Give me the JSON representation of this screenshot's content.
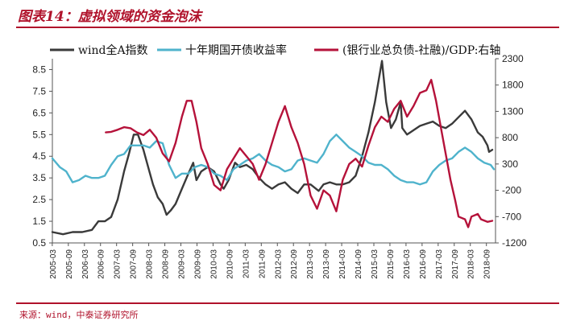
{
  "title": "图表14：虚拟领域的资金泡沫",
  "source": "来源：wind，中泰证券研究所",
  "chart_data": {
    "type": "line",
    "title": "",
    "xlabel": "",
    "ylabel": "",
    "ylim": [
      0.5,
      9.0
    ],
    "y2lim": [
      -1200,
      2300
    ],
    "yticks": [
      "8.5",
      "7.5",
      "6.5",
      "5.5",
      "4.5",
      "3.5",
      "2.5",
      "1.5",
      "0.5"
    ],
    "y2ticks": [
      "2300",
      "1800",
      "1300",
      "800",
      "300",
      "-200",
      "-700",
      "-1200"
    ],
    "xticks": [
      "2005-03",
      "2005-09",
      "2006-03",
      "2006-09",
      "2007-03",
      "2007-09",
      "2008-03",
      "2008-09",
      "2009-03",
      "2009-09",
      "2010-03",
      "2010-09",
      "2011-03",
      "2011-09",
      "2012-03",
      "2012-09",
      "2013-03",
      "2013-09",
      "2014-03",
      "2014-09",
      "2015-03",
      "2015-09",
      "2016-03",
      "2016-09",
      "2017-03",
      "2017-09",
      "2018-03",
      "2018-09"
    ],
    "legend_placement": "top",
    "series": [
      {
        "name": "wind全A指数",
        "color": "#3a3a3a",
        "axis": "left",
        "points": [
          [
            2005.17,
            1.0
          ],
          [
            2005.5,
            0.9
          ],
          [
            2005.8,
            1.0
          ],
          [
            2006.1,
            1.0
          ],
          [
            2006.4,
            1.1
          ],
          [
            2006.6,
            1.5
          ],
          [
            2006.8,
            1.5
          ],
          [
            2007.0,
            1.7
          ],
          [
            2007.2,
            2.5
          ],
          [
            2007.4,
            3.8
          ],
          [
            2007.55,
            4.6
          ],
          [
            2007.7,
            5.5
          ],
          [
            2007.83,
            5.5
          ],
          [
            2008.0,
            4.8
          ],
          [
            2008.15,
            4.0
          ],
          [
            2008.3,
            3.2
          ],
          [
            2008.45,
            2.6
          ],
          [
            2008.6,
            2.3
          ],
          [
            2008.72,
            1.8
          ],
          [
            2008.85,
            2.0
          ],
          [
            2009.0,
            2.3
          ],
          [
            2009.2,
            3.0
          ],
          [
            2009.4,
            3.7
          ],
          [
            2009.55,
            4.2
          ],
          [
            2009.65,
            3.4
          ],
          [
            2009.8,
            3.8
          ],
          [
            2010.0,
            4.0
          ],
          [
            2010.2,
            3.8
          ],
          [
            2010.4,
            3.2
          ],
          [
            2010.5,
            3.0
          ],
          [
            2010.65,
            3.4
          ],
          [
            2010.85,
            4.2
          ],
          [
            2011.0,
            4.0
          ],
          [
            2011.2,
            4.1
          ],
          [
            2011.4,
            3.9
          ],
          [
            2011.6,
            3.5
          ],
          [
            2011.8,
            3.2
          ],
          [
            2012.0,
            3.0
          ],
          [
            2012.2,
            3.2
          ],
          [
            2012.4,
            3.3
          ],
          [
            2012.6,
            3.0
          ],
          [
            2012.8,
            2.8
          ],
          [
            2013.0,
            3.2
          ],
          [
            2013.2,
            3.2
          ],
          [
            2013.45,
            2.9
          ],
          [
            2013.6,
            3.2
          ],
          [
            2013.8,
            3.3
          ],
          [
            2014.0,
            3.2
          ],
          [
            2014.2,
            3.2
          ],
          [
            2014.4,
            3.3
          ],
          [
            2014.6,
            3.6
          ],
          [
            2014.8,
            4.5
          ],
          [
            2015.0,
            5.6
          ],
          [
            2015.2,
            7.0
          ],
          [
            2015.42,
            8.9
          ],
          [
            2015.55,
            7.0
          ],
          [
            2015.7,
            5.8
          ],
          [
            2015.85,
            6.2
          ],
          [
            2016.0,
            7.0
          ],
          [
            2016.05,
            5.8
          ],
          [
            2016.2,
            5.5
          ],
          [
            2016.4,
            5.7
          ],
          [
            2016.6,
            5.9
          ],
          [
            2016.8,
            6.0
          ],
          [
            2017.0,
            6.1
          ],
          [
            2017.2,
            5.9
          ],
          [
            2017.4,
            5.8
          ],
          [
            2017.6,
            6.0
          ],
          [
            2017.8,
            6.3
          ],
          [
            2018.0,
            6.6
          ],
          [
            2018.2,
            6.2
          ],
          [
            2018.4,
            5.6
          ],
          [
            2018.55,
            5.4
          ],
          [
            2018.7,
            5.0
          ],
          [
            2018.75,
            4.7
          ],
          [
            2018.85,
            4.8
          ]
        ]
      },
      {
        "name": "十年期国开债收益率",
        "color": "#4fb3cc",
        "axis": "left",
        "points": [
          [
            2005.17,
            4.4
          ],
          [
            2005.4,
            4.0
          ],
          [
            2005.6,
            3.8
          ],
          [
            2005.8,
            3.3
          ],
          [
            2006.0,
            3.4
          ],
          [
            2006.2,
            3.6
          ],
          [
            2006.4,
            3.5
          ],
          [
            2006.6,
            3.5
          ],
          [
            2006.8,
            3.6
          ],
          [
            2007.0,
            4.1
          ],
          [
            2007.2,
            4.5
          ],
          [
            2007.4,
            4.6
          ],
          [
            2007.6,
            5.0
          ],
          [
            2007.8,
            5.0
          ],
          [
            2008.0,
            5.0
          ],
          [
            2008.2,
            4.9
          ],
          [
            2008.4,
            5.2
          ],
          [
            2008.6,
            5.1
          ],
          [
            2008.8,
            4.1
          ],
          [
            2009.0,
            3.5
          ],
          [
            2009.2,
            3.7
          ],
          [
            2009.4,
            3.7
          ],
          [
            2009.6,
            4.0
          ],
          [
            2009.8,
            4.1
          ],
          [
            2010.0,
            4.0
          ],
          [
            2010.2,
            3.7
          ],
          [
            2010.4,
            3.6
          ],
          [
            2010.6,
            3.4
          ],
          [
            2010.8,
            3.9
          ],
          [
            2011.0,
            4.1
          ],
          [
            2011.2,
            4.3
          ],
          [
            2011.4,
            4.4
          ],
          [
            2011.6,
            4.6
          ],
          [
            2011.8,
            4.3
          ],
          [
            2012.0,
            4.1
          ],
          [
            2012.2,
            4.0
          ],
          [
            2012.4,
            3.8
          ],
          [
            2012.6,
            3.9
          ],
          [
            2012.8,
            4.3
          ],
          [
            2013.0,
            4.4
          ],
          [
            2013.2,
            4.3
          ],
          [
            2013.4,
            4.2
          ],
          [
            2013.6,
            4.6
          ],
          [
            2013.8,
            5.2
          ],
          [
            2014.0,
            5.5
          ],
          [
            2014.2,
            5.2
          ],
          [
            2014.4,
            4.9
          ],
          [
            2014.6,
            4.7
          ],
          [
            2014.8,
            4.5
          ],
          [
            2015.0,
            4.2
          ],
          [
            2015.2,
            4.1
          ],
          [
            2015.4,
            4.1
          ],
          [
            2015.6,
            3.9
          ],
          [
            2015.8,
            3.6
          ],
          [
            2016.0,
            3.4
          ],
          [
            2016.2,
            3.3
          ],
          [
            2016.4,
            3.3
          ],
          [
            2016.6,
            3.2
          ],
          [
            2016.8,
            3.3
          ],
          [
            2017.0,
            3.8
          ],
          [
            2017.2,
            4.1
          ],
          [
            2017.4,
            4.3
          ],
          [
            2017.6,
            4.4
          ],
          [
            2017.8,
            4.7
          ],
          [
            2018.0,
            4.9
          ],
          [
            2018.2,
            4.7
          ],
          [
            2018.4,
            4.4
          ],
          [
            2018.6,
            4.2
          ],
          [
            2018.8,
            4.1
          ],
          [
            2018.9,
            3.9
          ]
        ]
      },
      {
        "name": "(银行业总负债-社融)/GDP:右轴",
        "color": "#b5123a",
        "axis": "right",
        "points": [
          [
            2006.83,
            900
          ],
          [
            2007.0,
            910
          ],
          [
            2007.2,
            950
          ],
          [
            2007.4,
            1000
          ],
          [
            2007.6,
            980
          ],
          [
            2007.8,
            900
          ],
          [
            2008.0,
            850
          ],
          [
            2008.2,
            950
          ],
          [
            2008.4,
            800
          ],
          [
            2008.6,
            500
          ],
          [
            2008.8,
            350
          ],
          [
            2009.0,
            700
          ],
          [
            2009.2,
            1200
          ],
          [
            2009.35,
            1500
          ],
          [
            2009.5,
            1500
          ],
          [
            2009.65,
            1100
          ],
          [
            2009.8,
            600
          ],
          [
            2010.0,
            300
          ],
          [
            2010.2,
            -100
          ],
          [
            2010.4,
            -200
          ],
          [
            2010.6,
            200
          ],
          [
            2010.8,
            400
          ],
          [
            2011.0,
            600
          ],
          [
            2011.2,
            450
          ],
          [
            2011.4,
            300
          ],
          [
            2011.6,
            0
          ],
          [
            2011.8,
            300
          ],
          [
            2012.0,
            700
          ],
          [
            2012.2,
            1100
          ],
          [
            2012.4,
            1400
          ],
          [
            2012.6,
            1000
          ],
          [
            2012.8,
            700
          ],
          [
            2013.0,
            300
          ],
          [
            2013.2,
            -300
          ],
          [
            2013.4,
            -550
          ],
          [
            2013.6,
            -200
          ],
          [
            2013.8,
            -300
          ],
          [
            2014.0,
            -600
          ],
          [
            2014.2,
            0
          ],
          [
            2014.4,
            300
          ],
          [
            2014.6,
            400
          ],
          [
            2014.8,
            250
          ],
          [
            2015.0,
            650
          ],
          [
            2015.2,
            1000
          ],
          [
            2015.4,
            1200
          ],
          [
            2015.6,
            1100
          ],
          [
            2015.8,
            1350
          ],
          [
            2016.0,
            1500
          ],
          [
            2016.2,
            1200
          ],
          [
            2016.4,
            1400
          ],
          [
            2016.6,
            1650
          ],
          [
            2016.8,
            1700
          ],
          [
            2016.95,
            1900
          ],
          [
            2017.1,
            1500
          ],
          [
            2017.25,
            1000
          ],
          [
            2017.4,
            500
          ],
          [
            2017.55,
            0
          ],
          [
            2017.7,
            -400
          ],
          [
            2017.8,
            -700
          ],
          [
            2018.0,
            -750
          ],
          [
            2018.1,
            -900
          ],
          [
            2018.2,
            -700
          ],
          [
            2018.4,
            -650
          ],
          [
            2018.5,
            -750
          ],
          [
            2018.7,
            -800
          ],
          [
            2018.85,
            -780
          ]
        ]
      }
    ]
  }
}
